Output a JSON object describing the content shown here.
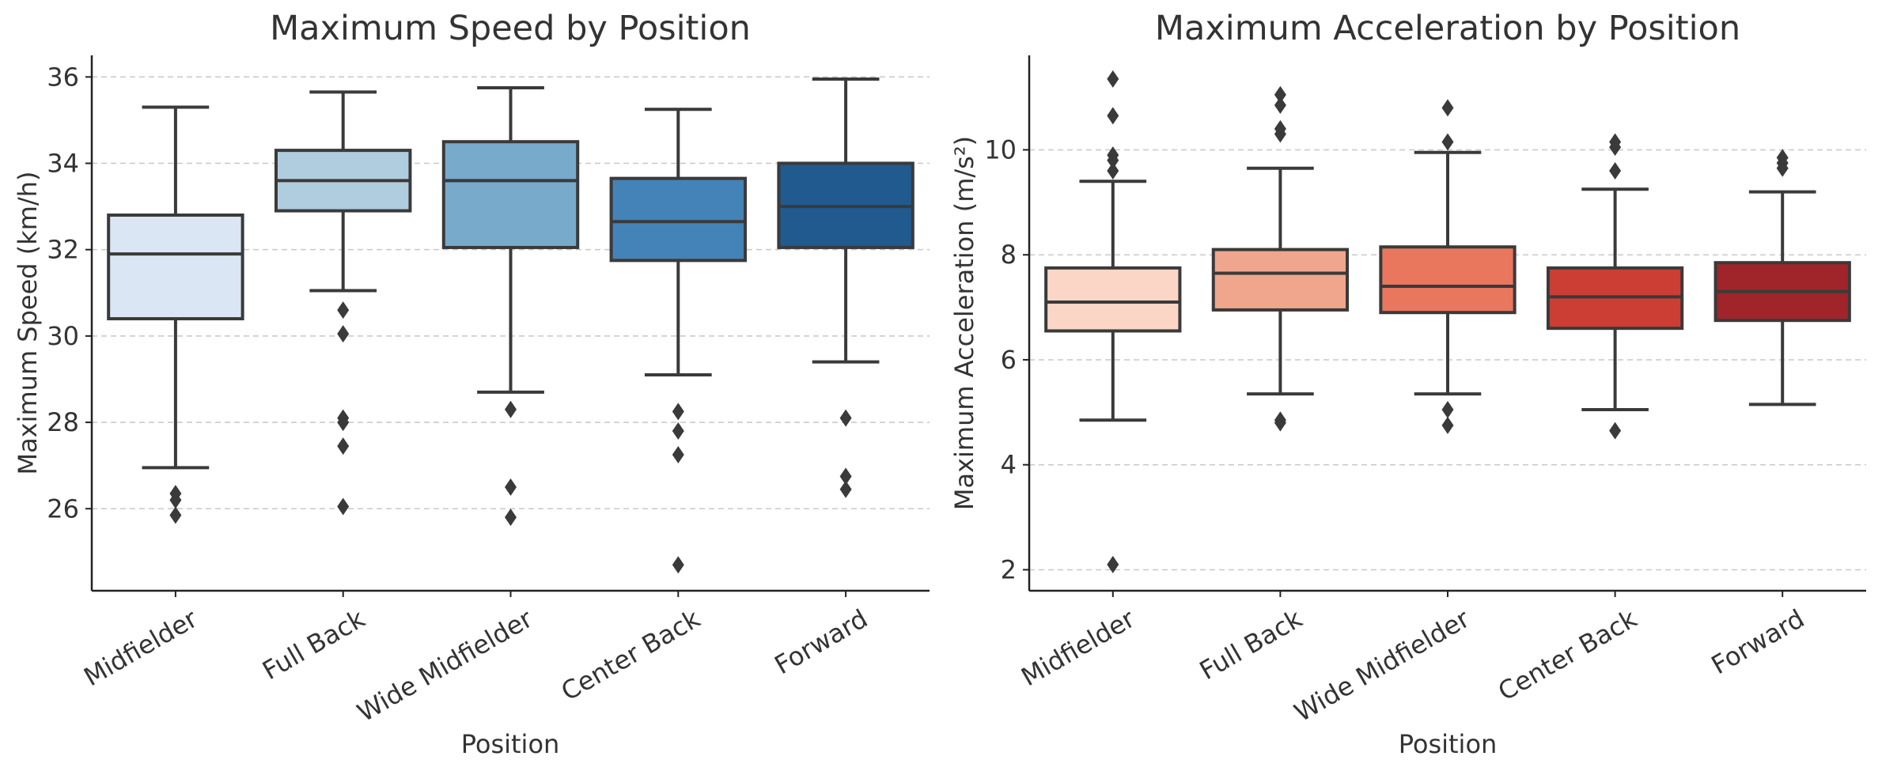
{
  "chart_data": [
    {
      "type": "box",
      "title": "Maximum Speed by Position",
      "xlabel": "Position",
      "ylabel": "Maximum Speed (km/h)",
      "ylim": [
        24.1,
        36.5
      ],
      "yticks": [
        26,
        28,
        30,
        32,
        34,
        36
      ],
      "grid": "y",
      "categories": [
        "Midfielder",
        "Full Back",
        "Wide Midfielder",
        "Center Back",
        "Forward"
      ],
      "colors": [
        "#dae6f3",
        "#b0cde0",
        "#78aacc",
        "#4383b8",
        "#215a8f"
      ],
      "boxes": [
        {
          "whisker_low": 26.95,
          "q1": 30.4,
          "median": 31.9,
          "q3": 32.8,
          "whisker_high": 35.3,
          "fliers": [
            26.35,
            26.2,
            25.85
          ]
        },
        {
          "whisker_low": 31.05,
          "q1": 32.9,
          "median": 33.6,
          "q3": 34.3,
          "whisker_high": 35.65,
          "fliers": [
            30.6,
            30.05,
            28.1,
            28.0,
            27.45,
            26.05
          ]
        },
        {
          "whisker_low": 28.7,
          "q1": 32.05,
          "median": 33.6,
          "q3": 34.5,
          "whisker_high": 35.75,
          "fliers": [
            28.3,
            26.5,
            25.8
          ]
        },
        {
          "whisker_low": 29.1,
          "q1": 31.75,
          "median": 32.65,
          "q3": 33.65,
          "whisker_high": 35.25,
          "fliers": [
            28.25,
            27.8,
            27.25,
            24.7
          ]
        },
        {
          "whisker_low": 29.4,
          "q1": 32.05,
          "median": 33.0,
          "q3": 34.0,
          "whisker_high": 35.95,
          "fliers": [
            28.1,
            26.75,
            26.45
          ]
        }
      ]
    },
    {
      "type": "box",
      "title": "Maximum Acceleration by Position",
      "xlabel": "Position",
      "ylabel": "Maximum Acceleration (m/s²)",
      "ylim": [
        1.6,
        11.8
      ],
      "yticks": [
        2,
        4,
        6,
        8,
        10
      ],
      "grid": "y",
      "categories": [
        "Midfielder",
        "Full Back",
        "Wide Midfielder",
        "Center Back",
        "Forward"
      ],
      "colors": [
        "#fbd6c6",
        "#efa68d",
        "#e8775e",
        "#cc3e33",
        "#a0252b"
      ],
      "boxes": [
        {
          "whisker_low": 4.85,
          "q1": 6.55,
          "median": 7.1,
          "q3": 7.75,
          "whisker_high": 9.4,
          "fliers": [
            11.35,
            10.65,
            9.9,
            9.8,
            9.6,
            2.1
          ]
        },
        {
          "whisker_low": 5.35,
          "q1": 6.95,
          "median": 7.65,
          "q3": 8.1,
          "whisker_high": 9.65,
          "fliers": [
            11.05,
            10.85,
            10.4,
            10.3,
            4.85,
            4.8
          ]
        },
        {
          "whisker_low": 5.35,
          "q1": 6.9,
          "median": 7.4,
          "q3": 8.15,
          "whisker_high": 9.95,
          "fliers": [
            10.8,
            10.15,
            5.05,
            4.75
          ]
        },
        {
          "whisker_low": 5.05,
          "q1": 6.6,
          "median": 7.2,
          "q3": 7.75,
          "whisker_high": 9.25,
          "fliers": [
            10.15,
            10.05,
            9.6,
            4.65
          ]
        },
        {
          "whisker_low": 5.15,
          "q1": 6.75,
          "median": 7.3,
          "q3": 7.85,
          "whisker_high": 9.2,
          "fliers": [
            9.85,
            9.75,
            9.65
          ]
        }
      ]
    }
  ]
}
